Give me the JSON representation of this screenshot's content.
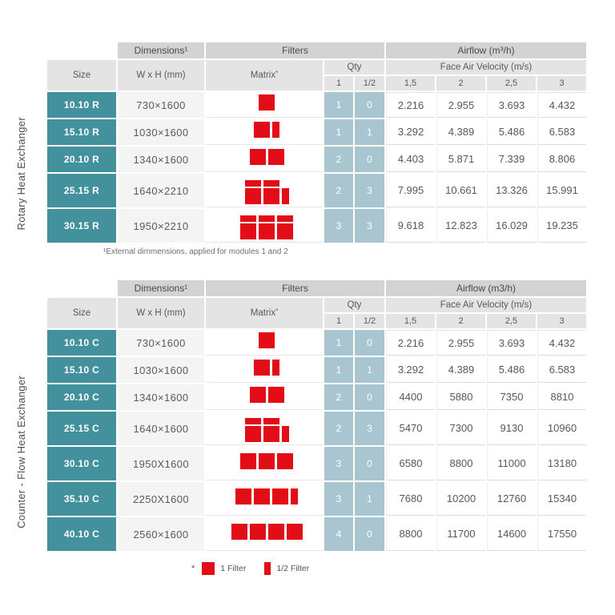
{
  "colors": {
    "teal": "#43919d",
    "light_blue": "#a9c6d0",
    "red": "#e20d17",
    "band_gray": "#d3d3d3",
    "sub_gray": "#e4e4e4"
  },
  "legend": {
    "marker": "*",
    "full_label": "1 Filter",
    "half_label": "1/2 Filter"
  },
  "tables": [
    {
      "id": "rotary",
      "side_label": "Rotary Heat Exchanger",
      "headers": {
        "dimensions": "Dimensions¹",
        "filters": "Filters",
        "airflow": "Airflow (m³/h)",
        "size": "Size",
        "wxh": "W x H (mm)",
        "matrix": "Matrix",
        "matrix_sup": "*",
        "qty": "Qty",
        "qty_one": "1",
        "qty_half": "1/2",
        "velocity": "Face Air Velocity (m/s)",
        "velocities": [
          "1,5",
          "2",
          "2,5",
          "3"
        ]
      },
      "footnote": "¹External dimmensions, applied for modules 1 and 2",
      "rows": [
        {
          "size": "10.10 R",
          "wxh": "730×1600",
          "matrix": [
            [
              "F"
            ]
          ],
          "qty1": "1",
          "qtyh": "0",
          "airflow": [
            "2.216",
            "2.955",
            "3.693",
            "4.432"
          ],
          "tall": false
        },
        {
          "size": "15.10 R",
          "wxh": "1030×1600",
          "matrix": [
            [
              "F",
              "H"
            ]
          ],
          "qty1": "1",
          "qtyh": "1",
          "airflow": [
            "3.292",
            "4.389",
            "5.486",
            "6.583"
          ],
          "tall": false
        },
        {
          "size": "20.10 R",
          "wxh": "1340×1600",
          "matrix": [
            [
              "F",
              "F"
            ]
          ],
          "qty1": "2",
          "qtyh": "0",
          "airflow": [
            "4.403",
            "5.871",
            "7.339",
            "8.806"
          ],
          "tall": false
        },
        {
          "size": "25.15 R",
          "wxh": "1640×2210",
          "matrix": [
            [
              "h",
              "h"
            ],
            [
              "F",
              "F",
              "H"
            ]
          ],
          "qty1": "2",
          "qtyh": "3",
          "airflow": [
            "7.995",
            "10.661",
            "13.326",
            "15.991"
          ],
          "tall": true
        },
        {
          "size": "30.15 R",
          "wxh": "1950×2210",
          "matrix": [
            [
              "h",
              "h",
              "h"
            ],
            [
              "F",
              "F",
              "F"
            ]
          ],
          "qty1": "3",
          "qtyh": "3",
          "airflow": [
            "9.618",
            "12.823",
            "16.029",
            "19.235"
          ],
          "tall": true
        }
      ]
    },
    {
      "id": "counter",
      "side_label": "Counter - Flow Heat Exchanger",
      "headers": {
        "dimensions": "Dimensions¹",
        "filters": "Filters",
        "airflow": "Airflow (m3/h)",
        "size": "Size",
        "wxh": "W x H (mm)",
        "matrix": "Matrix",
        "matrix_sup": "*",
        "qty": "Qty",
        "qty_one": "1",
        "qty_half": "1/2",
        "velocity": "Face Air Velocity (m/s)",
        "velocities": [
          "1,5",
          "2",
          "2,5",
          "3"
        ]
      },
      "footnote": "",
      "rows": [
        {
          "size": "10.10 C",
          "wxh": "730×1600",
          "matrix": [
            [
              "F"
            ]
          ],
          "qty1": "1",
          "qtyh": "0",
          "airflow": [
            "2.216",
            "2.955",
            "3.693",
            "4.432"
          ],
          "tall": false
        },
        {
          "size": "15.10 C",
          "wxh": "1030×1600",
          "matrix": [
            [
              "F",
              "H"
            ]
          ],
          "qty1": "1",
          "qtyh": "1",
          "airflow": [
            "3.292",
            "4.389",
            "5.486",
            "6.583"
          ],
          "tall": false
        },
        {
          "size": "20.10 C",
          "wxh": "1340×1600",
          "matrix": [
            [
              "F",
              "F"
            ]
          ],
          "qty1": "2",
          "qtyh": "0",
          "airflow": [
            "4400",
            "5880",
            "7350",
            "8810"
          ],
          "tall": false
        },
        {
          "size": "25.15 C",
          "wxh": "1640×1600",
          "matrix": [
            [
              "h",
              "h"
            ],
            [
              "F",
              "F",
              "H"
            ]
          ],
          "qty1": "2",
          "qtyh": "3",
          "airflow": [
            "5470",
            "7300",
            "9130",
            "10960"
          ],
          "tall": true
        },
        {
          "size": "30.10 C",
          "wxh": "1950X1600",
          "matrix": [
            [
              "F",
              "F",
              "F"
            ]
          ],
          "qty1": "3",
          "qtyh": "0",
          "airflow": [
            "6580",
            "8800",
            "11000",
            "13180"
          ],
          "tall": true
        },
        {
          "size": "35.10 C",
          "wxh": "2250X1600",
          "matrix": [
            [
              "F",
              "F",
              "F",
              "H"
            ]
          ],
          "qty1": "3",
          "qtyh": "1",
          "airflow": [
            "7680",
            "10200",
            "12760",
            "15340"
          ],
          "tall": true
        },
        {
          "size": "40.10 C",
          "wxh": "2560×1600",
          "matrix": [
            [
              "F",
              "F",
              "F",
              "F"
            ]
          ],
          "qty1": "4",
          "qtyh": "0",
          "airflow": [
            "8800",
            "11700",
            "14600",
            "17550"
          ],
          "tall": true
        }
      ]
    }
  ]
}
